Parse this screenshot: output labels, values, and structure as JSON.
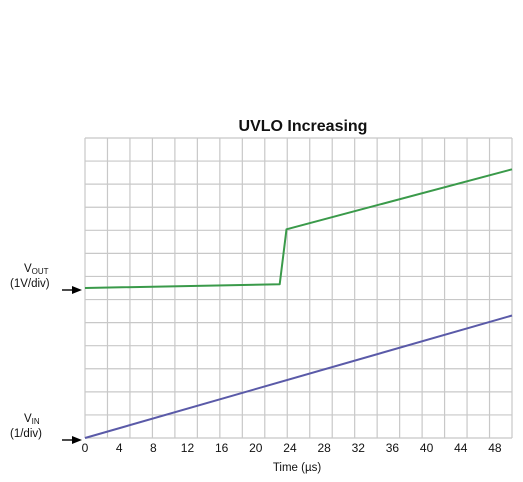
{
  "chart_data": {
    "type": "line",
    "title": "UVLO Increasing",
    "xlabel": "Time (µs)",
    "ylabel": "",
    "x_ticks": [
      0,
      4,
      8,
      12,
      16,
      20,
      24,
      28,
      32,
      36,
      40,
      44,
      48
    ],
    "xlim": [
      0,
      50
    ],
    "ylim": [
      0,
      12
    ],
    "grid": true,
    "y_labels": [
      {
        "main": "V",
        "sub": "OUT",
        "scale": "(1V/div)",
        "ref_y": 6
      },
      {
        "main": "V",
        "sub": "IN",
        "scale": "(1/div)",
        "ref_y": 0
      }
    ],
    "series": [
      {
        "color": "#3a9a4a",
        "points": [
          [
            0,
            6
          ],
          [
            22.8,
            6.15
          ],
          [
            23.6,
            8.35
          ],
          [
            50,
            10.75
          ]
        ]
      },
      {
        "color": "#5a5aa8",
        "points": [
          [
            0,
            0
          ],
          [
            50,
            4.9
          ]
        ]
      }
    ]
  }
}
